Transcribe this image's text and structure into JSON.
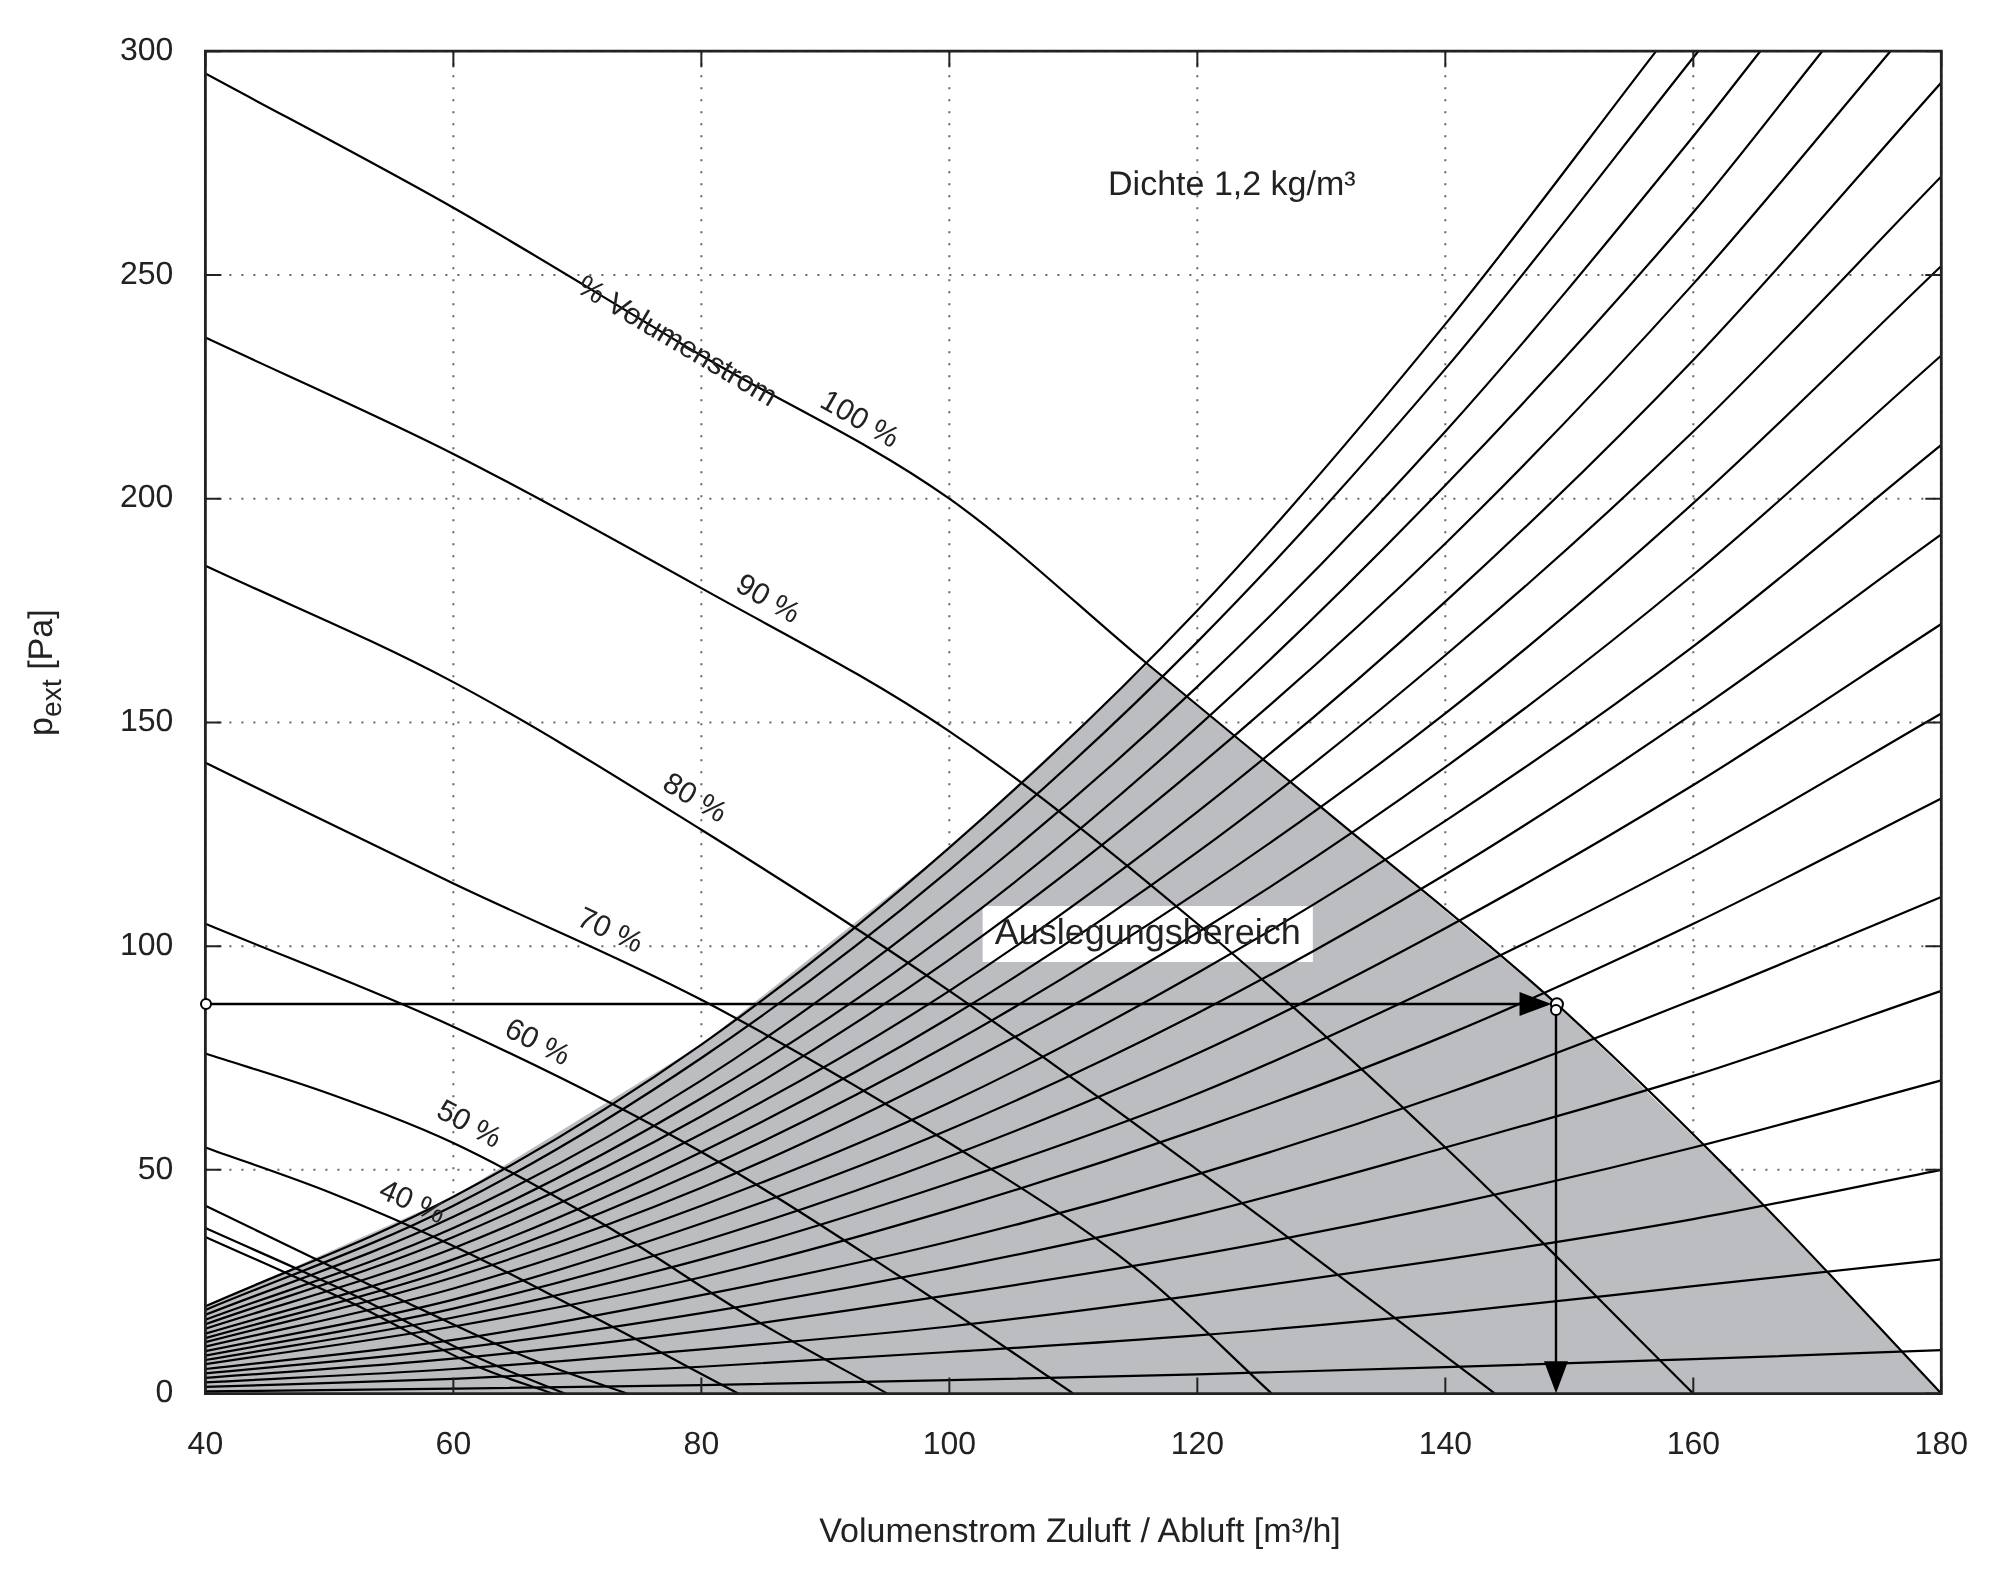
{
  "chart_data": {
    "type": "line",
    "xlabel": "Volumenstrom Zuluft / Abluft [m³/h]",
    "ylabel": "p$_{ext}$ [Pa]",
    "xlim": [
      40,
      180
    ],
    "xticks": [
      40,
      60,
      80,
      100,
      120,
      140,
      160,
      180
    ],
    "ylim": [
      0,
      300
    ],
    "yticks": [
      0,
      50,
      100,
      150,
      200,
      250,
      300
    ],
    "grid": true,
    "marker": "none",
    "annotations": [
      "Dichte 1,2 kg/m³",
      {
        "text": "% Volumenstrom",
        "x": 78,
        "y": 235
      }
    ],
    "series": [
      {
        "type": "area",
        "name": "Auslegungsbereich",
        "color": "#bcbdc1",
        "x": [
          40,
          60,
          80,
          100,
          116,
          130,
          149,
          165,
          180
        ],
        "values": [
          19.5,
          44,
          78,
          122,
          163,
          131,
          87,
          44,
          0
        ]
      },
      {
        "type": "line",
        "name": "100 %",
        "color": "#000000",
        "x": [
          40,
          60,
          80,
          100,
          116,
          130,
          149,
          165,
          180
        ],
        "values": [
          295,
          265,
          232,
          200,
          163,
          131,
          87,
          44,
          0
        ]
      },
      {
        "type": "line",
        "name": "90 %",
        "color": "#000000",
        "x": [
          40,
          60,
          80,
          100,
          120,
          140,
          160
        ],
        "values": [
          236,
          210,
          180,
          148,
          105,
          55,
          0
        ]
      },
      {
        "type": "line",
        "name": "80 %",
        "color": "#000000",
        "x": [
          40,
          60,
          80,
          100,
          120,
          144
        ],
        "values": [
          185,
          159,
          126,
          90,
          50,
          0
        ]
      },
      {
        "type": "line",
        "name": "70 %",
        "color": "#000000",
        "x": [
          40,
          60,
          80,
          100,
          115,
          126
        ],
        "values": [
          141,
          114,
          88,
          56,
          28,
          0
        ]
      },
      {
        "type": "line",
        "name": "60 %",
        "color": "#000000",
        "x": [
          40,
          60,
          80,
          95,
          110
        ],
        "values": [
          105,
          82,
          54,
          28,
          0
        ]
      },
      {
        "type": "line",
        "name": "50 %",
        "color": "#000000",
        "x": [
          40,
          50,
          60,
          72,
          84,
          95
        ],
        "values": [
          76,
          67,
          56,
          38,
          17,
          0
        ]
      },
      {
        "type": "line",
        "name": "40 %",
        "color": "#000000",
        "x": [
          40,
          50,
          60,
          70,
          83
        ],
        "values": [
          55,
          45,
          33,
          19,
          0
        ]
      },
      {
        "type": "line",
        "color": "#000000",
        "x": [
          40,
          55,
          66,
          74
        ],
        "values": [
          42,
          22,
          8,
          0
        ]
      },
      {
        "type": "line",
        "color": "#000000",
        "x": [
          40,
          52,
          62,
          69
        ],
        "values": [
          37,
          22,
          8,
          0
        ]
      },
      {
        "type": "line",
        "color": "#000000",
        "x": [
          40,
          52,
          62,
          68
        ],
        "values": [
          35,
          20,
          6,
          0
        ]
      },
      {
        "type": "line",
        "color": "#000000",
        "x": [
          40,
          60,
          80,
          100,
          120,
          140,
          157
        ],
        "values": [
          19.5,
          44,
          78,
          122,
          175,
          239,
          300
        ]
      },
      {
        "type": "line",
        "color": "#000000",
        "x": [
          40,
          60,
          80,
          100,
          120,
          140,
          160.4
        ],
        "values": [
          18.7,
          42,
          75,
          117,
          168,
          229,
          300
        ]
      },
      {
        "type": "line",
        "color": "#000000",
        "x": [
          40,
          60,
          80,
          100,
          120,
          140,
          160,
          165.4
        ],
        "values": [
          17.6,
          39.5,
          70,
          110,
          158,
          215,
          281,
          300
        ]
      },
      {
        "type": "line",
        "color": "#000000",
        "x": [
          40,
          60,
          80,
          100,
          120,
          140,
          160,
          170.4
        ],
        "values": [
          16.5,
          37,
          66,
          103,
          149,
          203,
          264,
          300
        ]
      },
      {
        "type": "line",
        "color": "#000000",
        "x": [
          40,
          60,
          80,
          100,
          120,
          140,
          160,
          175.9
        ],
        "values": [
          15.5,
          35,
          62,
          97,
          140,
          190,
          248,
          300
        ]
      },
      {
        "type": "line",
        "color": "#000000",
        "x": [
          40,
          60,
          80,
          100,
          120,
          140,
          160,
          180
        ],
        "values": [
          14.5,
          32.5,
          58,
          90,
          130,
          177,
          231,
          293
        ]
      },
      {
        "type": "line",
        "color": "#000000",
        "x": [
          40,
          60,
          80,
          100,
          120,
          140,
          160,
          180
        ],
        "values": [
          13.4,
          30,
          54,
          84,
          121,
          165,
          215,
          272
        ]
      },
      {
        "type": "line",
        "color": "#000000",
        "x": [
          40,
          60,
          80,
          100,
          120,
          140,
          160,
          180
        ],
        "values": [
          12.4,
          28,
          50,
          78,
          112,
          152,
          199,
          252
        ]
      },
      {
        "type": "line",
        "color": "#000000",
        "x": [
          40,
          60,
          80,
          100,
          120,
          140,
          160,
          180
        ],
        "values": [
          11.5,
          26,
          46,
          72,
          103,
          140,
          183,
          232
        ]
      },
      {
        "type": "line",
        "color": "#000000",
        "x": [
          40,
          60,
          80,
          100,
          120,
          140,
          160,
          180
        ],
        "values": [
          10.5,
          23.5,
          42,
          65,
          94,
          128,
          167,
          212
        ]
      },
      {
        "type": "line",
        "color": "#000000",
        "x": [
          40,
          60,
          80,
          100,
          120,
          140,
          160,
          180
        ],
        "values": [
          9.5,
          21,
          38,
          59,
          85,
          116,
          152,
          192
        ]
      },
      {
        "type": "line",
        "color": "#000000",
        "x": [
          40,
          60,
          80,
          100,
          120,
          140,
          160,
          180
        ],
        "values": [
          8.5,
          19,
          34,
          53,
          76,
          104,
          136,
          172
        ]
      },
      {
        "type": "line",
        "color": "#000000",
        "x": [
          40,
          60,
          80,
          100,
          120,
          140,
          160,
          180
        ],
        "values": [
          7.5,
          17,
          30,
          47,
          67,
          92,
          120,
          152
        ]
      },
      {
        "type": "line",
        "color": "#000000",
        "x": [
          40,
          60,
          80,
          100,
          120,
          140,
          160,
          180
        ],
        "values": [
          6.6,
          15,
          26,
          41,
          59,
          80,
          105,
          133
        ]
      },
      {
        "type": "line",
        "color": "#000000",
        "x": [
          40,
          60,
          80,
          100,
          120,
          140,
          160,
          180
        ],
        "values": [
          5.5,
          12,
          22,
          34,
          49,
          67,
          88,
          111
        ]
      },
      {
        "type": "line",
        "color": "#000000",
        "x": [
          40,
          60,
          80,
          100,
          120,
          140,
          160,
          180
        ],
        "values": [
          4.5,
          10,
          18,
          28,
          40,
          55,
          71,
          90
        ]
      },
      {
        "type": "line",
        "color": "#000000",
        "x": [
          40,
          60,
          80,
          100,
          120,
          140,
          160,
          180
        ],
        "values": [
          3.5,
          7.8,
          14,
          22,
          31,
          42,
          55,
          70
        ]
      },
      {
        "type": "line",
        "color": "#000000",
        "x": [
          40,
          60,
          80,
          100,
          120,
          140,
          160,
          180
        ],
        "values": [
          2.5,
          5.5,
          9.9,
          15,
          22,
          30,
          39,
          50
        ]
      },
      {
        "type": "line",
        "color": "#000000",
        "x": [
          40,
          60,
          80,
          100,
          120,
          140,
          160,
          180
        ],
        "values": [
          1.5,
          3.3,
          6,
          9.3,
          13,
          18,
          24,
          30
        ]
      },
      {
        "type": "line",
        "color": "#000000",
        "x": [
          40,
          60,
          80,
          100,
          120,
          140,
          160,
          180
        ],
        "values": [
          0.5,
          1.1,
          1.9,
          3,
          4.3,
          5.9,
          7.7,
          9.7
        ]
      },
      {
        "type": "scatter",
        "color": "#000000",
        "marker": "circle",
        "x": [
          149
        ],
        "values": [
          87
        ]
      }
    ]
  }
}
